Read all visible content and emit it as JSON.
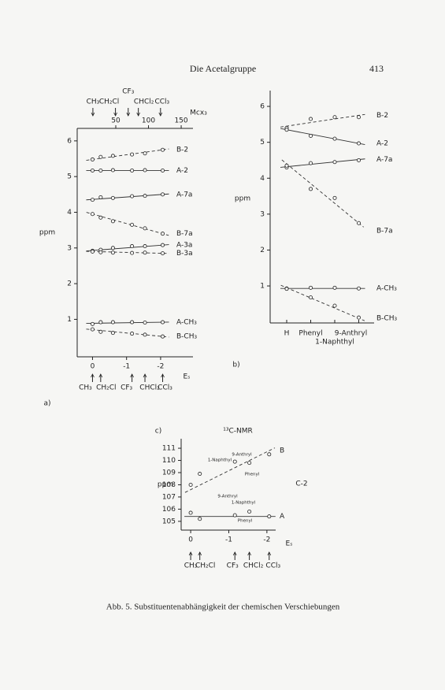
{
  "header": {
    "title": "Die Acetalgruppe",
    "page": "413"
  },
  "chart_data": [
    {
      "type": "scatter",
      "panel": "a)",
      "ylabel": "ppm",
      "xlabel": "Eₛ",
      "x": [
        0,
        -0.24,
        -0.6,
        -1.16,
        -1.54,
        -2.06
      ],
      "xlim": [
        0.45,
        -2.95
      ],
      "xticks": [
        0,
        -1,
        -2
      ],
      "ylim": [
        -0.05,
        6.35
      ],
      "yticks": [
        1,
        2,
        3,
        4,
        5,
        6
      ],
      "series": [
        {
          "name": "B-2",
          "dashed": true,
          "values": [
            5.48,
            5.55,
            5.58,
            5.62,
            5.65,
            5.75
          ],
          "fit": [
            5.48,
            5.75
          ]
        },
        {
          "name": "A-2",
          "dashed": false,
          "values": [
            5.17,
            5.17,
            5.18,
            5.17,
            5.18,
            5.17
          ],
          "fit": [
            5.17,
            5.17
          ]
        },
        {
          "name": "A-7a",
          "dashed": false,
          "values": [
            4.35,
            4.42,
            4.4,
            4.45,
            4.46,
            4.5
          ],
          "fit": [
            4.36,
            4.5
          ]
        },
        {
          "name": "B-7a",
          "dashed": true,
          "values": [
            3.95,
            3.85,
            3.75,
            3.65,
            3.55,
            3.4
          ],
          "fit": [
            3.95,
            3.4
          ]
        },
        {
          "name": "A-3a",
          "dashed": false,
          "values": [
            2.92,
            2.95,
            3.0,
            3.05,
            3.05,
            3.08
          ],
          "fit": [
            2.93,
            3.08
          ]
        },
        {
          "name": "B-3a",
          "dashed": true,
          "values": [
            2.9,
            2.88,
            2.87,
            2.86,
            2.87,
            2.85
          ],
          "fit": [
            2.9,
            2.85
          ]
        },
        {
          "name": "A-CH₃",
          "dashed": false,
          "values": [
            0.87,
            0.92,
            0.92,
            0.92,
            0.91,
            0.92
          ],
          "fit": [
            0.89,
            0.92
          ]
        },
        {
          "name": "B-CH₃",
          "dashed": true,
          "values": [
            0.72,
            0.65,
            0.62,
            0.6,
            0.57,
            0.52
          ],
          "fit": [
            0.71,
            0.52
          ]
        }
      ],
      "substituents": [
        "CH₃",
        "CH₂Cl",
        "CF₃",
        "CHCl₂",
        "CCl₃"
      ],
      "substituent_es": [
        0,
        -0.24,
        -1.16,
        -1.54,
        -2.06
      ],
      "top_axis": {
        "label": "Mcx₃",
        "lim": [
          -9,
          168
        ],
        "ticks": [
          50,
          100,
          150
        ],
        "substituents": [
          "CH₃",
          "CH₂Cl",
          "CF₃",
          "CHCl₂",
          "CCl₃"
        ],
        "substituent_mass": [
          15,
          49.5,
          69,
          84.5,
          118.4
        ]
      }
    },
    {
      "type": "scatter",
      "panel": "b)",
      "ylabel": "ppm",
      "categories": [
        "H",
        "Phenyl",
        "1-Naphthyl",
        "9-Anthryl"
      ],
      "ylim": [
        -0.03,
        6.44
      ],
      "yticks": [
        1,
        2,
        3,
        4,
        5,
        6
      ],
      "series": [
        {
          "name": "B-2",
          "dashed": true,
          "values": [
            5.4,
            5.65,
            5.7,
            5.7
          ],
          "fit": [
            5.45,
            5.75
          ]
        },
        {
          "name": "A-2",
          "dashed": false,
          "values": [
            5.35,
            5.18,
            5.1,
            4.97
          ],
          "fit": [
            5.35,
            4.97
          ]
        },
        {
          "name": "A-7a",
          "dashed": false,
          "values": [
            4.3,
            4.42,
            4.45,
            4.5
          ],
          "fit": [
            4.32,
            4.52
          ]
        },
        {
          "name": "B-7a",
          "dashed": true,
          "values": [
            4.35,
            3.7,
            3.45,
            2.75
          ],
          "fit": [
            4.4,
            2.75
          ]
        },
        {
          "name": "A-CH₃",
          "dashed": false,
          "values": [
            0.93,
            0.95,
            0.95,
            0.93
          ],
          "fit": [
            0.93,
            0.93
          ]
        },
        {
          "name": "B-CH₃",
          "dashed": true,
          "values": [
            0.92,
            0.68,
            0.45,
            0.12
          ],
          "fit": [
            0.95,
            0.1
          ]
        }
      ]
    },
    {
      "type": "scatter",
      "panel": "c)",
      "title": "¹³C-NMR",
      "annotation": "C-2",
      "ylabel": "ppm",
      "xlabel": "Eₛ",
      "x": [
        0,
        -0.24,
        -1.16,
        -1.54,
        -2.06
      ],
      "xlim": [
        0.25,
        -2.23
      ],
      "xticks": [
        0,
        -1,
        -2
      ],
      "ylim": [
        104.28,
        111.78
      ],
      "yticks": [
        105,
        106,
        107,
        108,
        109,
        110,
        111
      ],
      "series": [
        {
          "name": "B",
          "dashed": true,
          "values": [
            108.0,
            108.9,
            109.9,
            109.8,
            110.5
          ],
          "fit": [
            107.6,
            110.8
          ],
          "annotations": [
            "9-Anthryl",
            "1-Naphthyl",
            "Phenyl"
          ]
        },
        {
          "name": "A",
          "dashed": false,
          "values": [
            105.7,
            105.2,
            105.5,
            105.8,
            105.4
          ],
          "fit": [
            105.4,
            105.4
          ],
          "annotations": [
            "9-Anthryl",
            "1-Naphthyl",
            "Phenyl"
          ]
        }
      ],
      "substituents": [
        "CH₃",
        "CH₂Cl",
        "CF₃",
        "CHCl₂",
        "CCl₃"
      ],
      "substituent_es": [
        0,
        -0.24,
        -1.16,
        -1.54,
        -2.06
      ]
    }
  ],
  "caption": "Abb. 5. Substituentenabhängigkeit der chemischen Verschiebungen"
}
